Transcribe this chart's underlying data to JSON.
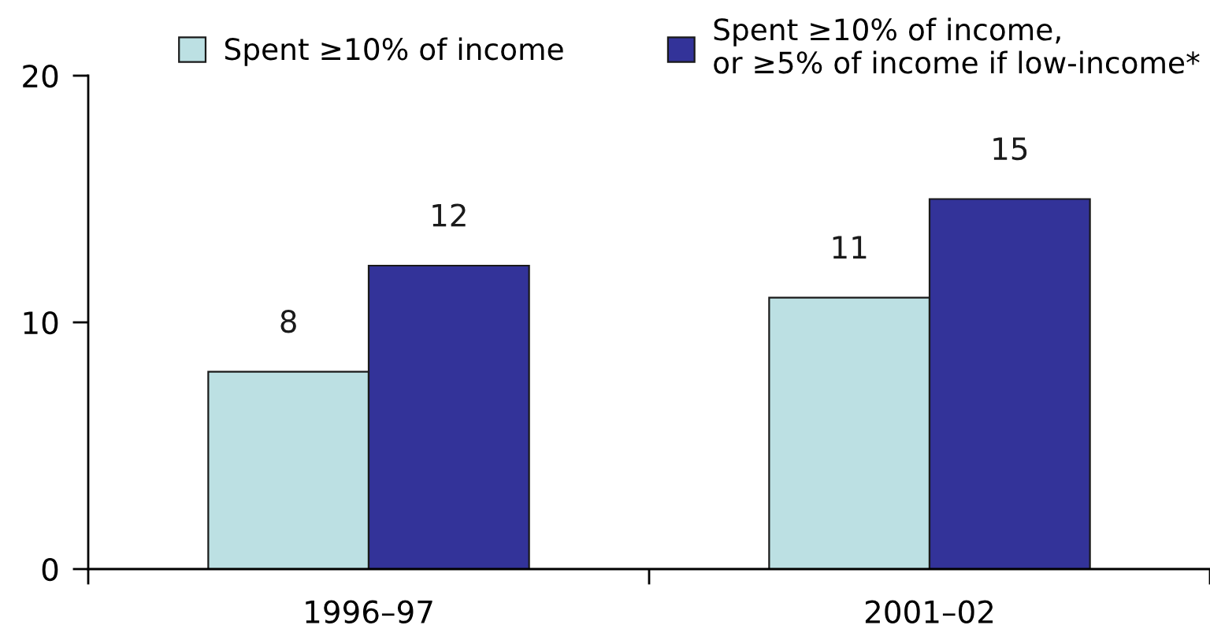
{
  "chart_data": {
    "type": "bar",
    "categories": [
      "1996–97",
      "2001–02"
    ],
    "series": [
      {
        "name": "Spent ≥10% of income",
        "color": "#bce0e3",
        "values": [
          8,
          11
        ],
        "value_labels": [
          "8",
          "11"
        ]
      },
      {
        "name": "Spent ≥10% of income,\nor ≥5% of income if low-income*",
        "color": "#333399",
        "values": [
          12.3,
          15
        ],
        "value_labels": [
          "12",
          "15"
        ]
      }
    ],
    "ylim": [
      0,
      20
    ],
    "yticks": [
      0,
      10,
      20
    ],
    "legend": "top",
    "grid": false
  }
}
